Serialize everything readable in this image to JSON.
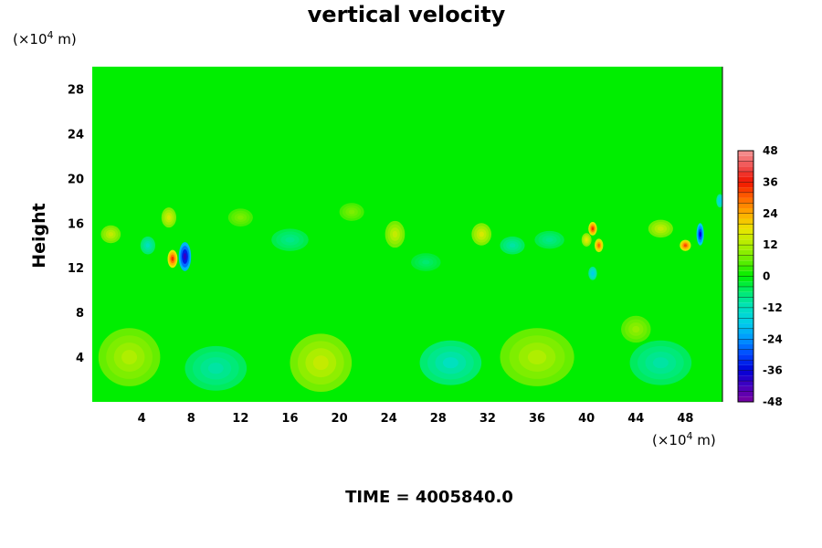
{
  "chart_data": {
    "type": "heatmap",
    "title": "vertical velocity",
    "ylabel": "Height",
    "xlabel": "",
    "y_unit": "(×10",
    "x_unit": "(×10",
    "unit_exponent": "4",
    "unit_suffix": " m)",
    "xlim": [
      0,
      51
    ],
    "ylim": [
      0,
      30
    ],
    "x_ticks": [
      4,
      8,
      12,
      16,
      20,
      24,
      28,
      32,
      36,
      40,
      44,
      48
    ],
    "y_ticks": [
      4,
      8,
      12,
      16,
      20,
      24,
      28
    ],
    "colorbar": {
      "min": -48,
      "max": 48,
      "ticks": [
        48,
        36,
        24,
        12,
        0,
        -12,
        -24,
        -36,
        -48
      ]
    },
    "background_value": 0,
    "features": [
      {
        "x": 3,
        "y": 4,
        "value": 12,
        "sx": 2.5,
        "sy": 2.6
      },
      {
        "x": 18.5,
        "y": 3.5,
        "value": 14,
        "sx": 2.5,
        "sy": 2.6
      },
      {
        "x": 36,
        "y": 4,
        "value": 12,
        "sx": 3,
        "sy": 2.6
      },
      {
        "x": 10,
        "y": 3,
        "value": -10,
        "sx": 2.5,
        "sy": 2
      },
      {
        "x": 29,
        "y": 3.5,
        "value": -12,
        "sx": 2.5,
        "sy": 2
      },
      {
        "x": 46,
        "y": 3.5,
        "value": -10,
        "sx": 2.5,
        "sy": 2
      },
      {
        "x": 44,
        "y": 6.5,
        "value": 10,
        "sx": 1.2,
        "sy": 1.2
      },
      {
        "x": 7.5,
        "y": 13,
        "value": -40,
        "sx": 0.5,
        "sy": 1.3
      },
      {
        "x": 6.5,
        "y": 12.8,
        "value": 34,
        "sx": 0.4,
        "sy": 0.8
      },
      {
        "x": 6.2,
        "y": 16.5,
        "value": 16,
        "sx": 0.6,
        "sy": 0.9
      },
      {
        "x": 1.5,
        "y": 15,
        "value": 14,
        "sx": 0.8,
        "sy": 0.8
      },
      {
        "x": 4.5,
        "y": 14,
        "value": -12,
        "sx": 0.6,
        "sy": 0.8
      },
      {
        "x": 24.5,
        "y": 15,
        "value": 14,
        "sx": 0.8,
        "sy": 1.2
      },
      {
        "x": 31.5,
        "y": 15,
        "value": 16,
        "sx": 0.8,
        "sy": 1.0
      },
      {
        "x": 34,
        "y": 14,
        "value": -10,
        "sx": 1.0,
        "sy": 0.8
      },
      {
        "x": 40.5,
        "y": 15.5,
        "value": 34,
        "sx": 0.35,
        "sy": 0.6
      },
      {
        "x": 41,
        "y": 14,
        "value": 30,
        "sx": 0.35,
        "sy": 0.6
      },
      {
        "x": 40,
        "y": 14.5,
        "value": 18,
        "sx": 0.4,
        "sy": 0.6
      },
      {
        "x": 40.5,
        "y": 11.5,
        "value": -18,
        "sx": 0.35,
        "sy": 0.6
      },
      {
        "x": 48,
        "y": 14,
        "value": 32,
        "sx": 0.45,
        "sy": 0.5
      },
      {
        "x": 49.2,
        "y": 15,
        "value": -36,
        "sx": 0.3,
        "sy": 1.0
      },
      {
        "x": 50.8,
        "y": 18,
        "value": -18,
        "sx": 0.3,
        "sy": 0.6
      },
      {
        "x": 46,
        "y": 15.5,
        "value": 14,
        "sx": 1.0,
        "sy": 0.8
      },
      {
        "x": 16,
        "y": 14.5,
        "value": -8,
        "sx": 1.5,
        "sy": 1.0
      },
      {
        "x": 37,
        "y": 14.5,
        "value": -8,
        "sx": 1.2,
        "sy": 0.8
      },
      {
        "x": 21,
        "y": 17,
        "value": 8,
        "sx": 1.0,
        "sy": 0.8
      },
      {
        "x": 27,
        "y": 12.5,
        "value": -6,
        "sx": 1.2,
        "sy": 0.8
      },
      {
        "x": 12,
        "y": 16.5,
        "value": 8,
        "sx": 1.0,
        "sy": 0.8
      }
    ]
  },
  "footer": {
    "time_label": "TIME = 4005840.0"
  }
}
